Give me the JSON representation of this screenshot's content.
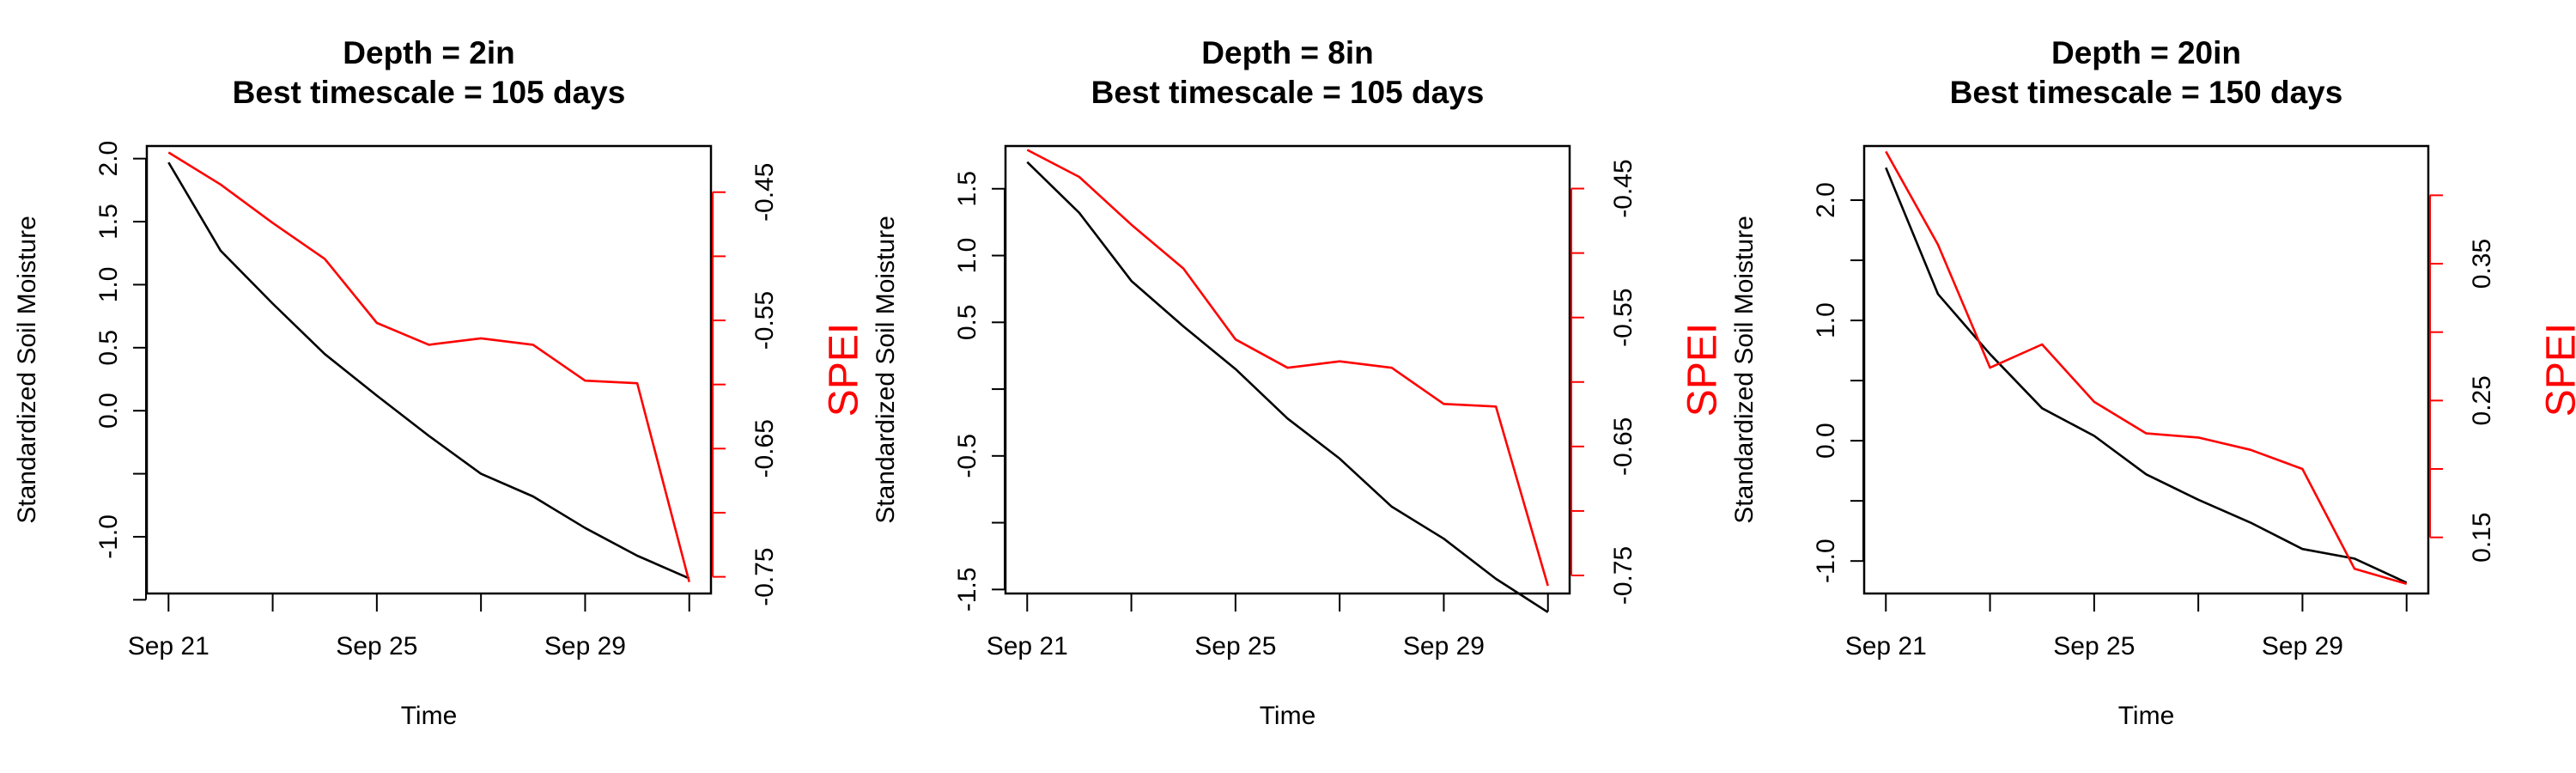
{
  "chart_data": [
    {
      "type": "line",
      "title_lines": [
        "Depth = 2in",
        "Best timescale = 105 days"
      ],
      "xlabel": "Time",
      "ylabel": "Standardized Soil Moisture",
      "y2label": "SPEI",
      "x": [
        "2021-09-21",
        "2021-09-22",
        "2021-09-23",
        "2021-09-24",
        "2021-09-25",
        "2021-09-26",
        "2021-09-27",
        "2021-09-28",
        "2021-09-29",
        "2021-09-30",
        "2021-10-01"
      ],
      "xticks": [
        "Sep 21",
        "Sep 25",
        "Sep 29"
      ],
      "xlim": [
        "2021-09-20T14:00",
        "2021-10-01T10:00"
      ],
      "ylim": [
        -1.45,
        2.1
      ],
      "yticks": [
        -1.5,
        -1.0,
        -0.5,
        0.0,
        0.5,
        1.0,
        1.5,
        2.0
      ],
      "ytick_labels": [
        "",
        "-1.0",
        "",
        "0.0",
        "0.5",
        "1.0",
        "1.5",
        "2.0"
      ],
      "y2lim": [
        -0.763,
        -0.414
      ],
      "y2ticks": [
        -0.75,
        -0.7,
        -0.65,
        -0.6,
        -0.55,
        -0.5,
        -0.45
      ],
      "y2tick_labels": [
        "-0.75",
        "",
        "-0.65",
        "",
        "-0.55",
        "",
        "-0.45"
      ],
      "series": [
        {
          "axis": "left",
          "color": "#000000",
          "values": [
            1.97,
            1.27,
            0.85,
            0.45,
            0.12,
            -0.2,
            -0.5,
            -0.68,
            -0.93,
            -1.15,
            -1.33
          ]
        },
        {
          "axis": "right",
          "color": "#ff0000",
          "values": [
            -0.419,
            -0.444,
            -0.474,
            -0.502,
            -0.552,
            -0.569,
            -0.564,
            -0.569,
            -0.597,
            -0.599,
            -0.754
          ]
        }
      ]
    },
    {
      "type": "line",
      "title_lines": [
        "Depth = 8in",
        "Best timescale = 105 days"
      ],
      "xlabel": "Time",
      "ylabel": "Standardized Soil Moisture",
      "y2label": "SPEI",
      "x": [
        "2021-09-21",
        "2021-09-22",
        "2021-09-23",
        "2021-09-24",
        "2021-09-25",
        "2021-09-26",
        "2021-09-27",
        "2021-09-28",
        "2021-09-29",
        "2021-09-30",
        "2021-10-01"
      ],
      "xticks": [
        "Sep 21",
        "Sep 25",
        "Sep 29"
      ],
      "xlim": [
        "2021-09-20T14:00",
        "2021-10-01T10:00"
      ],
      "ylim": [
        -1.53,
        1.82
      ],
      "yticks": [
        -1.5,
        -1.0,
        -0.5,
        0.0,
        0.5,
        1.0,
        1.5
      ],
      "ytick_labels": [
        "-1.5",
        "",
        "-0.5",
        "",
        "0.5",
        "1.0",
        "1.5"
      ],
      "y2lim": [
        -0.764,
        -0.417
      ],
      "y2ticks": [
        -0.75,
        -0.7,
        -0.65,
        -0.6,
        -0.55,
        -0.5,
        -0.45
      ],
      "y2tick_labels": [
        "-0.75",
        "",
        "-0.65",
        "",
        "-0.55",
        "",
        "-0.45"
      ],
      "series": [
        {
          "axis": "left",
          "color": "#000000",
          "values": [
            1.7,
            1.32,
            0.81,
            0.47,
            0.15,
            -0.22,
            -0.52,
            -0.88,
            -1.12,
            -1.42,
            -1.67
          ]
        },
        {
          "axis": "right",
          "color": "#ff0000",
          "values": [
            -0.42,
            -0.441,
            -0.478,
            -0.512,
            -0.567,
            -0.589,
            -0.584,
            -0.589,
            -0.617,
            -0.619,
            -0.758
          ]
        }
      ]
    },
    {
      "type": "line",
      "title_lines": [
        "Depth = 20in",
        "Best timescale = 150 days"
      ],
      "xlabel": "Time",
      "ylabel": "Standardized Soil Moisture",
      "y2label": "SPEI",
      "x": [
        "2021-09-21",
        "2021-09-22",
        "2021-09-23",
        "2021-09-24",
        "2021-09-25",
        "2021-09-26",
        "2021-09-27",
        "2021-09-28",
        "2021-09-29",
        "2021-09-30",
        "2021-10-01"
      ],
      "xticks": [
        "Sep 21",
        "Sep 25",
        "Sep 29"
      ],
      "xlim": [
        "2021-09-20T14:00",
        "2021-10-01T10:00"
      ],
      "ylim": [
        -1.27,
        2.45
      ],
      "yticks": [
        -1.0,
        -0.5,
        0.0,
        0.5,
        1.0,
        1.5,
        2.0
      ],
      "ytick_labels": [
        "-1.0",
        "",
        "0.0",
        "",
        "1.0",
        "",
        "2.0"
      ],
      "y2lim": [
        0.109,
        0.436
      ],
      "y2ticks": [
        0.15,
        0.2,
        0.25,
        0.3,
        0.35,
        0.4
      ],
      "y2tick_labels": [
        "0.15",
        "",
        "0.25",
        "",
        "0.35",
        ""
      ],
      "series": [
        {
          "axis": "left",
          "color": "#000000",
          "values": [
            2.27,
            1.22,
            0.72,
            0.27,
            0.04,
            -0.28,
            -0.49,
            -0.68,
            -0.9,
            -0.98,
            -1.18
          ]
        },
        {
          "axis": "right",
          "color": "#ff0000",
          "values": [
            0.432,
            0.364,
            0.274,
            0.291,
            0.249,
            0.226,
            0.223,
            0.214,
            0.2,
            0.127,
            0.116
          ]
        }
      ]
    }
  ]
}
